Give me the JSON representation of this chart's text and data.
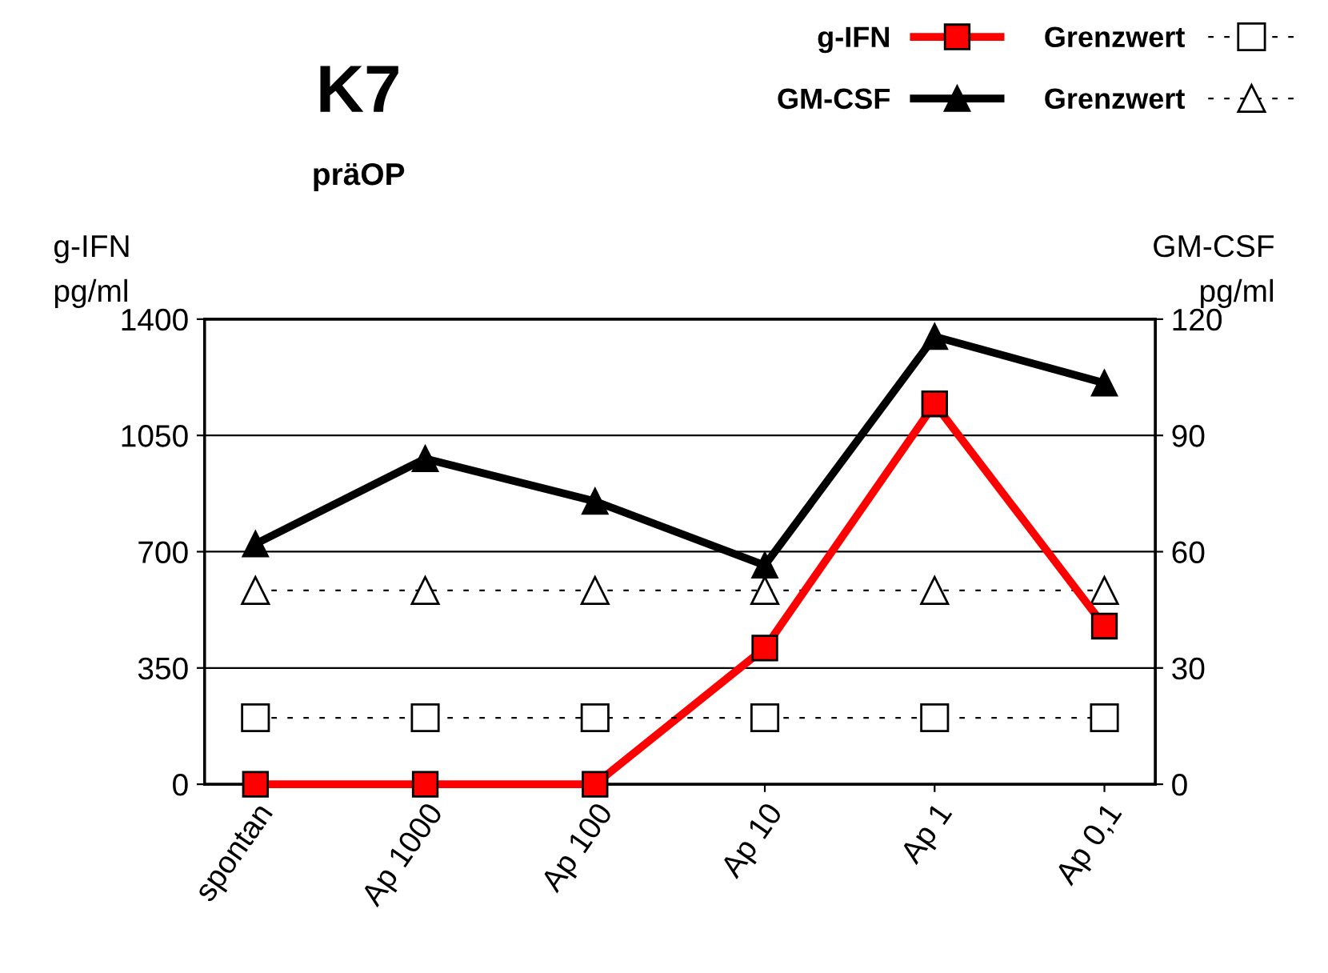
{
  "chart_data": {
    "type": "line",
    "title": "K7",
    "subtitle": "präOP",
    "ylabel": "g-IFN\npg/ml",
    "y2label": "GM-CSF\npg/ml",
    "categories": [
      "spontan",
      "Ap 1000",
      "Ap 100",
      "Ap 10",
      "Ap 1",
      "Ap 0,1"
    ],
    "series": [
      {
        "name": "g-IFN",
        "color": "#ff0000",
        "marker": "square",
        "line_style": "solid",
        "values": [
          0,
          0,
          0,
          410,
          1145,
          476
        ]
      },
      {
        "name": "GM-CSF",
        "color": "#000000",
        "marker": "triangle",
        "line_style": "solid",
        "axis": "y2",
        "values": [
          62,
          84,
          73,
          56.5,
          115.5,
          103.5
        ]
      },
      {
        "name": "Grenzwert",
        "color": "#000000",
        "marker": "square",
        "line_style": "dashed",
        "values": [
          200,
          200,
          200,
          200,
          200,
          200
        ]
      },
      {
        "name": "Grenzwert",
        "color": "#000000",
        "marker": "triangle",
        "line_style": "dashed",
        "axis": "y2",
        "values": [
          50,
          50,
          50,
          50,
          50,
          50
        ]
      }
    ],
    "ylim": [
      0,
      1400
    ],
    "yticks": [
      0,
      350,
      700,
      1050,
      1400
    ],
    "y2lim": [
      0,
      120
    ],
    "y2ticks": [
      0,
      30,
      60,
      90,
      120
    ],
    "grid": "y",
    "legend": "top right"
  }
}
